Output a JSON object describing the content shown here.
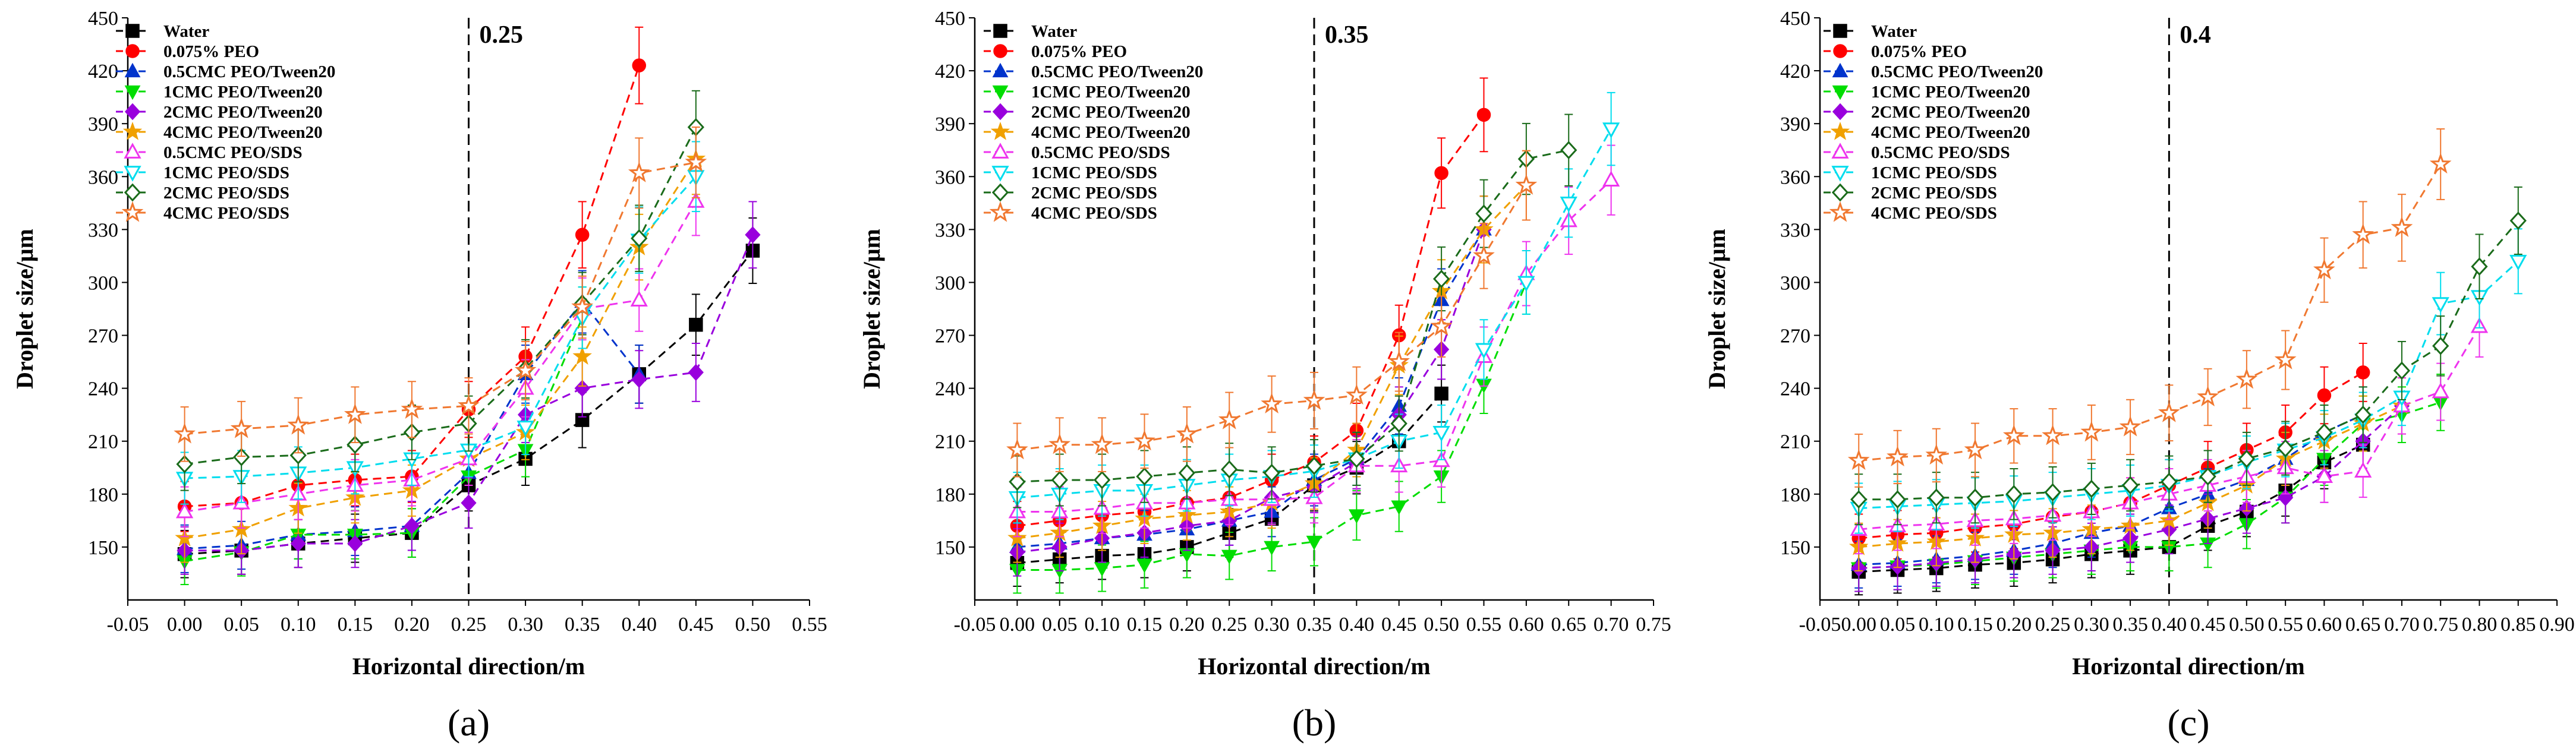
{
  "figure": {
    "colors": {
      "Water": "#000000",
      "0.075% PEO": "#ff0000",
      "0.5CMC PEO/Tween20": "#0033cc",
      "1CMC PEO/Tween20": "#00dd00",
      "2CMC PEO/Tween20": "#9900dd",
      "4CMC PEO/Tween20": "#f0a000",
      "0.5CMC PEO/SDS": "#ee33ee",
      "1CMC PEO/SDS": "#00ddee",
      "2CMC PEO/SDS": "#1a6b1a",
      "4CMC PEO/SDS": "#f07830"
    },
    "markers": {
      "Water": "square",
      "0.075% PEO": "circle",
      "0.5CMC PEO/Tween20": "triangle-up",
      "1CMC PEO/Tween20": "triangle-down",
      "2CMC PEO/Tween20": "diamond",
      "4CMC PEO/Tween20": "star",
      "0.5CMC PEO/SDS": "triangle-up-open",
      "1CMC PEO/SDS": "triangle-down-open",
      "2CMC PEO/SDS": "diamond-open",
      "4CMC PEO/SDS": "star-open"
    }
  },
  "chart_data": [
    {
      "type": "line",
      "panel_label": "(a)",
      "threshold": {
        "x": 0.25,
        "label": "0.25"
      },
      "xlabel": "Horizontal direction/m",
      "ylabel": "Droplet size/μm",
      "xlim": [
        -0.05,
        0.55
      ],
      "ylim": [
        120,
        450
      ],
      "xticks": [
        "-0.05",
        "0.00",
        "0.05",
        "0.10",
        "0.15",
        "0.20",
        "0.25",
        "0.30",
        "0.35",
        "0.40",
        "0.45",
        "0.50",
        "0.55"
      ],
      "yticks": [
        "150",
        "180",
        "210",
        "240",
        "270",
        "300",
        "330",
        "360",
        "390",
        "420",
        "450"
      ],
      "x": [
        0.0,
        0.05,
        0.1,
        0.15,
        0.2,
        0.25,
        0.3,
        0.35,
        0.4,
        0.45,
        0.5
      ],
      "series": [
        {
          "name": "Water",
          "values": [
            146,
            148,
            152,
            155,
            158,
            185,
            200,
            222,
            248,
            276,
            318
          ]
        },
        {
          "name": "0.075% PEO",
          "values": [
            173,
            175,
            185,
            188,
            190,
            228,
            258,
            327,
            423,
            null,
            null
          ]
        },
        {
          "name": "0.5CMC PEO/Tween20",
          "values": [
            149,
            151,
            157,
            159,
            162,
            192,
            248,
            289,
            248,
            null,
            null
          ]
        },
        {
          "name": "1CMC PEO/Tween20",
          "values": [
            142,
            147,
            157,
            157,
            158,
            190,
            205,
            280,
            null,
            null,
            null
          ]
        },
        {
          "name": "2CMC PEO/Tween20",
          "values": [
            148,
            148,
            152,
            152,
            162,
            175,
            225,
            240,
            245,
            249,
            327
          ]
        },
        {
          "name": "4CMC PEO/Tween20",
          "values": [
            155,
            160,
            172,
            178,
            182,
            200,
            215,
            258,
            320,
            370,
            null
          ]
        },
        {
          "name": "0.5CMC PEO/SDS",
          "values": [
            170,
            175,
            180,
            185,
            188,
            200,
            240,
            285,
            290,
            346,
            null
          ]
        },
        {
          "name": "1CMC PEO/SDS",
          "values": [
            189,
            190,
            192,
            195,
            200,
            205,
            218,
            280,
            324,
            360,
            null
          ]
        },
        {
          "name": "2CMC PEO/SDS",
          "values": [
            197,
            201,
            202,
            208,
            215,
            220,
            251,
            288,
            325,
            388,
            null
          ]
        },
        {
          "name": "4CMC PEO/SDS",
          "values": [
            214,
            217,
            219,
            225,
            228,
            230,
            250,
            286,
            362,
            368,
            null
          ]
        }
      ]
    },
    {
      "type": "line",
      "panel_label": "(b)",
      "threshold": {
        "x": 0.35,
        "label": "0.35"
      },
      "xlabel": "Horizontal direction/m",
      "ylabel": "Droplet size/μm",
      "xlim": [
        -0.05,
        0.75
      ],
      "ylim": [
        120,
        450
      ],
      "xticks": [
        "-0.05",
        "0.00",
        "0.05",
        "0.10",
        "0.15",
        "0.20",
        "0.25",
        "0.30",
        "0.35",
        "0.40",
        "0.45",
        "0.50",
        "0.55",
        "0.60",
        "0.65",
        "0.70",
        "0.75"
      ],
      "yticks": [
        "150",
        "180",
        "210",
        "240",
        "270",
        "300",
        "330",
        "360",
        "390",
        "420",
        "450"
      ],
      "x": [
        0.0,
        0.05,
        0.1,
        0.15,
        0.2,
        0.25,
        0.3,
        0.35,
        0.4,
        0.45,
        0.5,
        0.55,
        0.6,
        0.65,
        0.7
      ],
      "series": [
        {
          "name": "Water",
          "values": [
            141,
            143,
            145,
            146,
            150,
            158,
            166,
            185,
            195,
            210,
            237,
            null,
            null,
            null,
            null
          ]
        },
        {
          "name": "0.075% PEO",
          "values": [
            162,
            165,
            168,
            170,
            175,
            178,
            188,
            198,
            216,
            270,
            362,
            395,
            null,
            null,
            null
          ]
        },
        {
          "name": "0.5CMC PEO/Tween20",
          "values": [
            150,
            152,
            155,
            157,
            160,
            165,
            170,
            188,
            200,
            230,
            290,
            330,
            null,
            null,
            null
          ]
        },
        {
          "name": "1CMC PEO/Tween20",
          "values": [
            137,
            137,
            138,
            140,
            146,
            145,
            150,
            153,
            168,
            173,
            190,
            242,
            300,
            null,
            null
          ]
        },
        {
          "name": "2CMC PEO/Tween20",
          "values": [
            147,
            150,
            155,
            158,
            162,
            165,
            178,
            184,
            198,
            225,
            262,
            330,
            null,
            null,
            null
          ]
        },
        {
          "name": "4CMC PEO/Tween20",
          "values": [
            155,
            158,
            162,
            166,
            168,
            170,
            175,
            186,
            205,
            253,
            295,
            330,
            355,
            null,
            null
          ]
        },
        {
          "name": "0.5CMC PEO/SDS",
          "values": [
            170,
            170,
            172,
            175,
            175,
            177,
            177,
            178,
            196,
            196,
            199,
            258,
            305,
            335,
            358
          ]
        },
        {
          "name": "1CMC PEO/SDS",
          "values": [
            178,
            180,
            182,
            182,
            185,
            188,
            190,
            193,
            200,
            210,
            215,
            262,
            300,
            345,
            387
          ]
        },
        {
          "name": "2CMC PEO/SDS",
          "values": [
            187,
            188,
            188,
            190,
            192,
            194,
            192,
            196,
            200,
            220,
            302,
            339,
            370,
            375,
            null
          ]
        },
        {
          "name": "4CMC PEO/SDS",
          "values": [
            205,
            208,
            208,
            210,
            214,
            222,
            231,
            233,
            236,
            255,
            275,
            315,
            355,
            null,
            null
          ]
        }
      ]
    },
    {
      "type": "line",
      "panel_label": "(c)",
      "threshold": {
        "x": 0.4,
        "label": "0.4"
      },
      "xlabel": "Horizontal direction/m",
      "ylabel": "Droplet size/μm",
      "xlim": [
        -0.05,
        0.9
      ],
      "ylim": [
        120,
        450
      ],
      "xticks": [
        "-0.05",
        "0.00",
        "0.05",
        "0.10",
        "0.15",
        "0.20",
        "0.25",
        "0.30",
        "0.35",
        "0.40",
        "0.45",
        "0.50",
        "0.55",
        "0.60",
        "0.65",
        "0.70",
        "0.75",
        "0.80",
        "0.85",
        "0.90"
      ],
      "yticks": [
        "150",
        "180",
        "210",
        "240",
        "270",
        "300",
        "330",
        "360",
        "390",
        "420",
        "450"
      ],
      "x": [
        0.0,
        0.05,
        0.1,
        0.15,
        0.2,
        0.25,
        0.3,
        0.35,
        0.4,
        0.45,
        0.5,
        0.55,
        0.6,
        0.65,
        0.7,
        0.75,
        0.8,
        0.85
      ],
      "series": [
        {
          "name": "Water",
          "values": [
            136,
            137,
            138,
            140,
            141,
            143,
            146,
            148,
            150,
            162,
            170,
            182,
            198,
            208,
            null,
            null,
            null,
            null
          ]
        },
        {
          "name": "0.075% PEO",
          "values": [
            155,
            157,
            158,
            161,
            163,
            167,
            170,
            175,
            185,
            195,
            205,
            215,
            236,
            249,
            null,
            null,
            null,
            null
          ]
        },
        {
          "name": "0.5CMC PEO/Tween20",
          "values": [
            140,
            141,
            143,
            145,
            148,
            152,
            158,
            162,
            172,
            180,
            188,
            200,
            215,
            225,
            null,
            null,
            null,
            null
          ]
        },
        {
          "name": "1CMC PEO/Tween20",
          "values": [
            138,
            139,
            140,
            142,
            144,
            146,
            148,
            150,
            150,
            152,
            163,
            178,
            200,
            220,
            225,
            232,
            null,
            null
          ]
        },
        {
          "name": "2CMC PEO/Tween20",
          "values": [
            138,
            139,
            141,
            143,
            146,
            148,
            150,
            155,
            160,
            166,
            172,
            178,
            190,
            210,
            230,
            null,
            null,
            null
          ]
        },
        {
          "name": "4CMC PEO/Tween20",
          "values": [
            150,
            152,
            153,
            155,
            157,
            158,
            160,
            162,
            165,
            175,
            185,
            200,
            210,
            220,
            230,
            null,
            null,
            null
          ]
        },
        {
          "name": "0.5CMC PEO/SDS",
          "values": [
            160,
            162,
            163,
            165,
            166,
            168,
            170,
            175,
            180,
            185,
            190,
            195,
            190,
            193,
            230,
            238,
            275,
            null
          ]
        },
        {
          "name": "1CMC PEO/SDS",
          "values": [
            172,
            173,
            174,
            175,
            176,
            178,
            180,
            182,
            185,
            190,
            198,
            205,
            212,
            222,
            235,
            288,
            292,
            312
          ]
        },
        {
          "name": "2CMC PEO/SDS",
          "values": [
            177,
            177,
            178,
            178,
            180,
            181,
            183,
            185,
            187,
            190,
            200,
            206,
            215,
            225,
            250,
            264,
            309,
            335
          ]
        },
        {
          "name": "4CMC PEO/SDS",
          "values": [
            199,
            201,
            202,
            205,
            213,
            213,
            215,
            218,
            226,
            235,
            245,
            256,
            307,
            327,
            331,
            367,
            null,
            null
          ]
        }
      ]
    }
  ]
}
